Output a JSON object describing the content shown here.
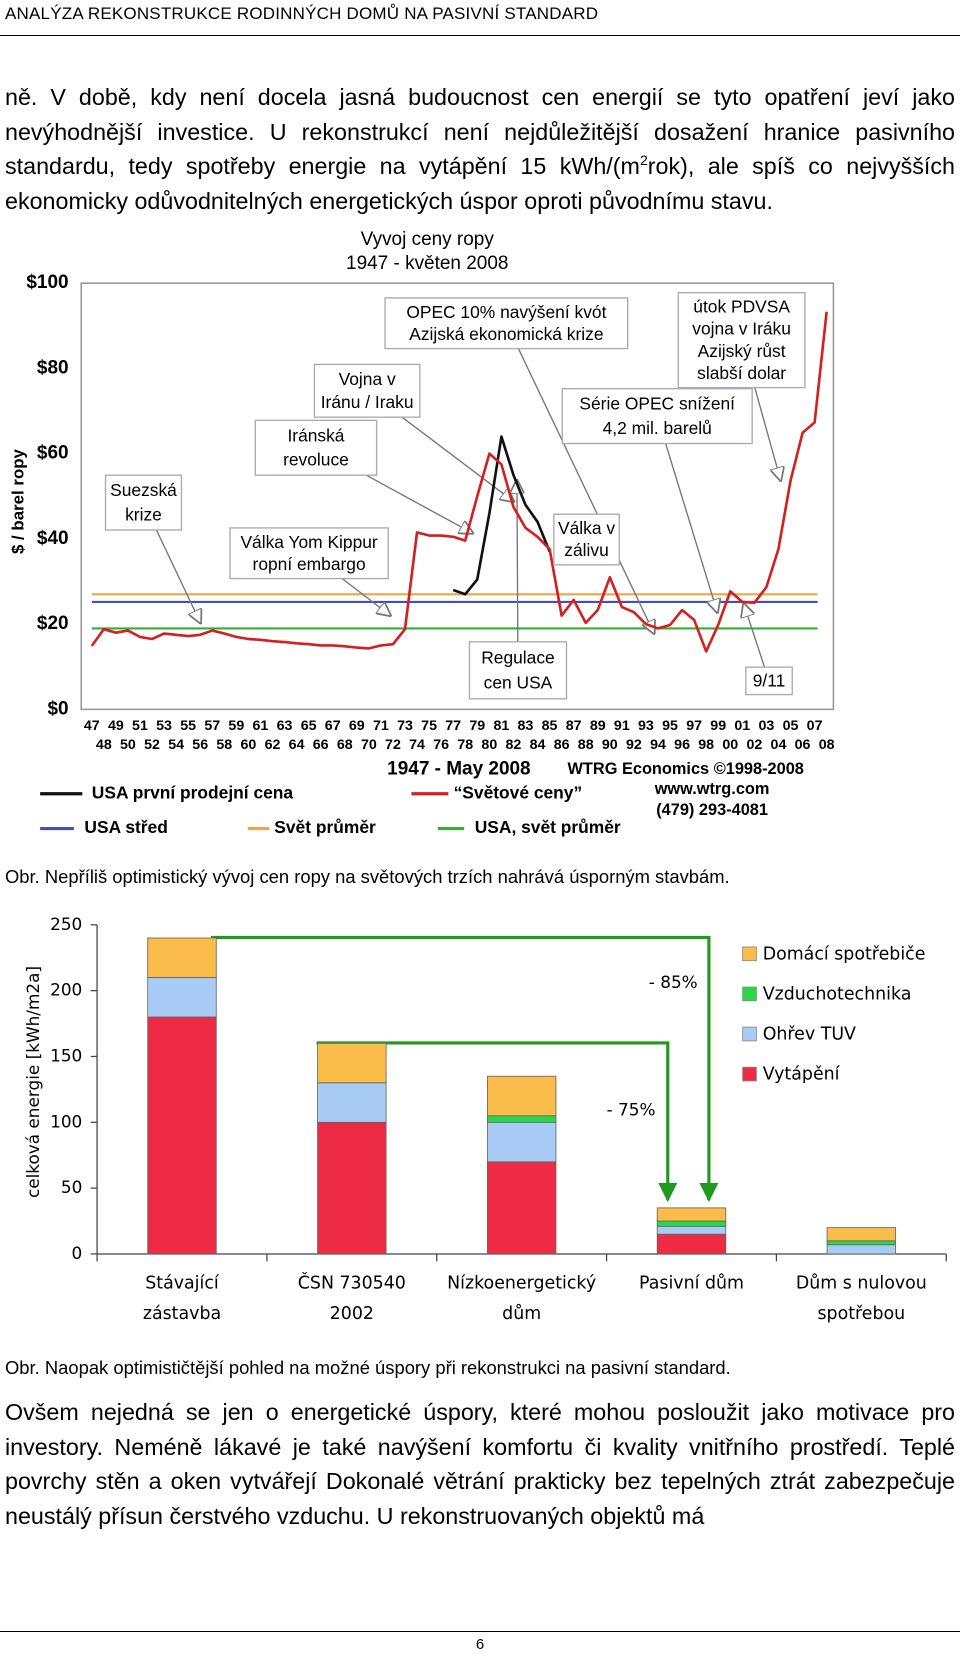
{
  "header": {
    "title": "ANALÝZA REKONSTRUKCE RODINNÝCH DOMŮ NA PASIVNÍ STANDARD"
  },
  "paragraphs": [
    {
      "parts": [
        "ně. V době, kdy není docela jasná budoucnost cen energií se tyto opatření jeví jako nevýhodnější investice. U rekonstrukcí není nejdůležitější dosažení hranice pasivního standardu, tedy spotřeby energie na vytápění 15 kWh/(m",
        "2",
        "rok), ale spíš co nejvyšších ekonomicky odůvodnitelných energetických úspor oproti původnímu stavu."
      ]
    },
    {
      "parts": [
        "Ovšem nejedná se jen o energetické úspory, které mohou posloužit jako motivace pro investory. Neméně lákavé je také navýšení komfortu či kvality vnitřního prostředí. Teplé povrchy stěn a oken vytvářejí Dokonalé větrání prakticky bez tepelných ztrát zabezpečuje neustálý přísun čerstvého vzduchu. U rekonstruovaných objektů má"
      ]
    }
  ],
  "captions": [
    "Obr. Nepříliš optimistický vývoj cen ropy na světových trzích nahrává úsporným stavbám.",
    "Obr. Naopak optimističtější pohled na možné úspory při rekonstrukci na pasivní standard."
  ],
  "chart_data": [
    {
      "type": "line",
      "title": "Vyvoj ceny ropy",
      "subtitle": "1947 - květen 2008",
      "y_label": "$ / barel ropy",
      "x_label": "1947 - May 2008",
      "credits": [
        "WTRG Economics ©1998-2008",
        "www.wtrg.com",
        "(479) 293-4081"
      ],
      "categories": [
        "47",
        "48",
        "49",
        "50",
        "51",
        "52",
        "53",
        "54",
        "55",
        "56",
        "57",
        "58",
        "59",
        "60",
        "61",
        "62",
        "63",
        "64",
        "65",
        "66",
        "67",
        "68",
        "69",
        "70",
        "71",
        "72",
        "73",
        "74",
        "75",
        "76",
        "77",
        "78",
        "79",
        "80",
        "81",
        "82",
        "83",
        "84",
        "85",
        "86",
        "87",
        "88",
        "89",
        "90",
        "91",
        "92",
        "93",
        "94",
        "95",
        "96",
        "97",
        "98",
        "99",
        "00",
        "01",
        "02",
        "03",
        "04",
        "05",
        "06",
        "07",
        "08"
      ],
      "series": [
        {
          "name": "USA první prodejní cena",
          "color": "#111111",
          "values": [
            null,
            null,
            null,
            null,
            null,
            null,
            null,
            null,
            null,
            null,
            null,
            null,
            null,
            null,
            null,
            null,
            null,
            null,
            null,
            null,
            null,
            null,
            null,
            null,
            null,
            null,
            null,
            null,
            null,
            null,
            28,
            27,
            30.5,
            46,
            64,
            55,
            48,
            44,
            37,
            null,
            null,
            null,
            null,
            null,
            null,
            null,
            null,
            null,
            null,
            null,
            null,
            null,
            null,
            null,
            null,
            null,
            null,
            null,
            null,
            null,
            null,
            null
          ]
        },
        {
          "name": "“Světové ceny”",
          "color": "#d42020",
          "values": [
            14.9,
            18.8,
            18,
            18.5,
            17,
            16.5,
            17.8,
            17.5,
            17.2,
            17.5,
            18.5,
            17.8,
            17,
            16.5,
            16.3,
            16,
            15.8,
            15.5,
            15.3,
            15,
            15,
            14.8,
            14.5,
            14.3,
            15,
            15.3,
            18.8,
            41.5,
            40.8,
            40.8,
            40.5,
            39.6,
            50,
            60,
            57.5,
            47.5,
            42.6,
            40.5,
            37.6,
            22,
            25.7,
            20.3,
            23.3,
            31,
            24,
            22.8,
            20,
            19,
            19.8,
            23.3,
            21,
            13.6,
            19.8,
            27.7,
            25.2,
            25,
            28.7,
            37.6,
            53.7,
            64.9,
            67.3,
            93.3
          ]
        }
      ],
      "reference_lines": [
        {
          "name": "USA střed",
          "color": "#3f4fc2",
          "value": 25.2
        },
        {
          "name": "Svět průměr",
          "color": "#f0a445",
          "value": 27
        },
        {
          "name": "USA, svět průměr",
          "color": "#33b033",
          "value": 19
        }
      ],
      "ylim": [
        0,
        100
      ],
      "yticks": [
        {
          "value": 0,
          "label": "$0"
        },
        {
          "value": 20,
          "label": "$20"
        },
        {
          "value": 40,
          "label": "$40"
        },
        {
          "value": 60,
          "label": "$60"
        },
        {
          "value": 80,
          "label": "$80"
        },
        {
          "value": 100,
          "label": "$100"
        }
      ],
      "grid": false,
      "annotations": [
        {
          "lines": [
            "Suezská",
            "krize"
          ]
        },
        {
          "lines": [
            "Válka Yom Kippur",
            "ropní embargo"
          ]
        },
        {
          "lines": [
            "Iránská",
            "revoluce"
          ]
        },
        {
          "lines": [
            "Vojna v",
            "Iránu / Iraku"
          ]
        },
        {
          "lines": [
            "OPEC 10% navýšení kvót",
            "Azijská ekonomická krize"
          ]
        },
        {
          "lines": [
            "útok PDVSA",
            "vojna v Iráku",
            "Azijský růst",
            "slabší dolar"
          ]
        },
        {
          "lines": [
            "Série OPEC snížení",
            "4,2 mil. barelů"
          ]
        },
        {
          "lines": [
            "Válka v",
            "zálivu"
          ]
        },
        {
          "lines": [
            "Regulace",
            "cen USA"
          ]
        },
        {
          "lines": [
            "9/11"
          ]
        }
      ]
    },
    {
      "type": "stacked-bar",
      "y_label": "celková energie [kWh/m2a]",
      "categories": [
        [
          "Stávající",
          "zástavba"
        ],
        [
          "ČSN 730540",
          "2002"
        ],
        [
          "Nízkoenergetický",
          "dům"
        ],
        [
          "Pasivní dům"
        ],
        [
          "Dům s nulovou",
          "spotřebou"
        ]
      ],
      "series": [
        {
          "name": "Vytápění",
          "color": "#ee2b45",
          "values": [
            180,
            100,
            70,
            15,
            0
          ]
        },
        {
          "name": "Ohřev TUV",
          "color": "#a8ccf6",
          "values": [
            30,
            30,
            30,
            6,
            7
          ]
        },
        {
          "name": "Vzduchotechnika",
          "color": "#28d848",
          "values": [
            0,
            0,
            5,
            4,
            3
          ]
        },
        {
          "name": "Domácí spotřebiče",
          "color": "#fbbc4a",
          "values": [
            30,
            30,
            30,
            10,
            10
          ]
        }
      ],
      "ylim": [
        0,
        250
      ],
      "yticks": [
        0,
        50,
        100,
        150,
        200,
        250
      ],
      "annotations": [
        {
          "text": "- 85%"
        },
        {
          "text": "- 75%"
        }
      ]
    }
  ],
  "page_number": "6"
}
